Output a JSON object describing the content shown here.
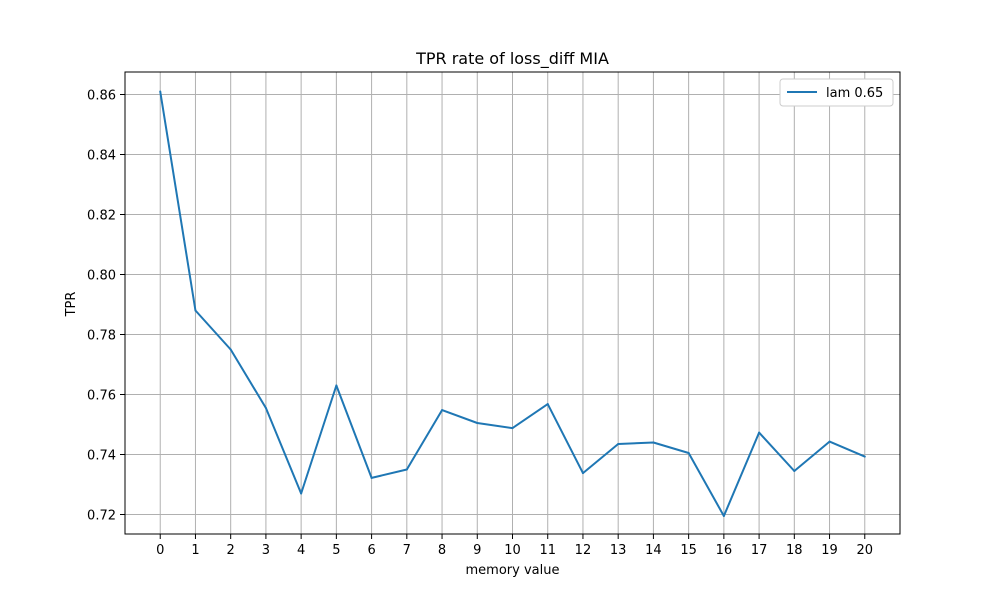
{
  "chart_data": {
    "type": "line",
    "title": "TPR rate of loss_diff MIA",
    "xlabel": "memory value",
    "ylabel": "TPR",
    "x": [
      0,
      1,
      2,
      3,
      4,
      5,
      6,
      7,
      8,
      9,
      10,
      11,
      12,
      13,
      14,
      15,
      16,
      17,
      18,
      19,
      20
    ],
    "xticks": [
      "0",
      "1",
      "2",
      "3",
      "4",
      "5",
      "6",
      "7",
      "8",
      "9",
      "10",
      "11",
      "12",
      "13",
      "14",
      "15",
      "16",
      "17",
      "18",
      "19",
      "20"
    ],
    "yticks": [
      0.72,
      0.74,
      0.76,
      0.78,
      0.8,
      0.82,
      0.84,
      0.86
    ],
    "ytick_labels": [
      "0.72",
      "0.74",
      "0.76",
      "0.78",
      "0.80",
      "0.82",
      "0.84",
      "0.86"
    ],
    "xlim": [
      -1.0,
      21.0
    ],
    "ylim": [
      0.7135,
      0.8675
    ],
    "grid": true,
    "legend_position": "top-right",
    "series": [
      {
        "name": "lam 0.65",
        "color": "#1f77b4",
        "values": [
          0.861,
          0.788,
          0.775,
          0.7555,
          0.727,
          0.763,
          0.7322,
          0.735,
          0.7548,
          0.7505,
          0.7488,
          0.7568,
          0.7338,
          0.7435,
          0.744,
          0.7405,
          0.7195,
          0.7473,
          0.7345,
          0.7443,
          0.7393
        ]
      }
    ]
  }
}
